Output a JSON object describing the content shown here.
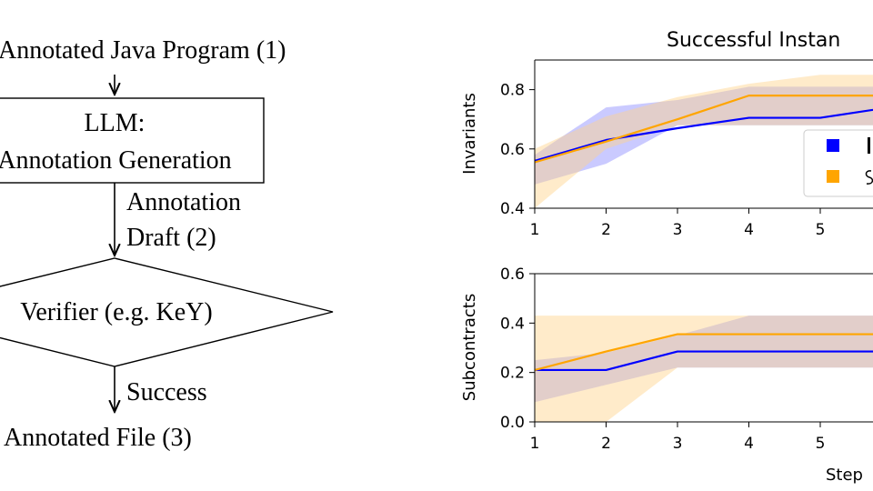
{
  "flowchart": {
    "input_label": "Annotated Java Program (1)",
    "llm_box": {
      "line1": "LLM:",
      "line2": "Annotation Generation"
    },
    "draft_edge": {
      "line1": "Annotation",
      "line2": "Draft (2)"
    },
    "verifier_label": "Verifier (e.g. KeY)",
    "success_edge": "Success",
    "output_label": "Annotated File (3)"
  },
  "colors": {
    "series_blue": "#0000ff",
    "series_orange": "#ffa500",
    "band_blue": "#8a8aff",
    "band_orange": "#ffd38a"
  },
  "chart_data": [
    {
      "type": "line",
      "title": "Successful Instan",
      "xlabel": "",
      "ylabel": "Invariants",
      "categories": [
        "1",
        "2",
        "3",
        "4",
        "5"
      ],
      "x": [
        1,
        2,
        3,
        4,
        5,
        6.1
      ],
      "xlim": [
        1,
        6.1
      ],
      "ylim": [
        0.4,
        0.9
      ],
      "yticks": [
        0.4,
        0.6,
        0.8
      ],
      "ytick_labels": [
        "0.4",
        "0.6",
        "0.8"
      ],
      "legend": "right",
      "series": [
        {
          "name": "blue",
          "color": "#0000ff",
          "values": [
            0.56,
            0.63,
            0.67,
            0.705,
            0.705,
            0.745
          ],
          "lower": [
            0.48,
            0.55,
            0.68,
            0.68,
            0.68,
            0.68
          ],
          "upper": [
            0.58,
            0.74,
            0.765,
            0.81,
            0.81,
            0.81
          ]
        },
        {
          "name": "orange",
          "color": "#ffa500",
          "values": [
            0.555,
            0.625,
            0.7,
            0.78,
            0.78,
            0.78
          ],
          "lower": [
            0.4,
            0.6,
            0.68,
            0.68,
            0.68,
            0.68
          ],
          "upper": [
            0.6,
            0.71,
            0.775,
            0.82,
            0.85,
            0.85
          ]
        }
      ]
    },
    {
      "type": "line",
      "title": "",
      "xlabel": "Step",
      "ylabel": "Subcontracts",
      "categories": [
        "1",
        "2",
        "3",
        "4",
        "5"
      ],
      "x": [
        1,
        2,
        3,
        4,
        5,
        6.1
      ],
      "xlim": [
        1,
        6.1
      ],
      "ylim": [
        0.0,
        0.6
      ],
      "yticks": [
        0.0,
        0.2,
        0.4,
        0.6
      ],
      "ytick_labels": [
        "0.0",
        "0.2",
        "0.4",
        "0.6"
      ],
      "series": [
        {
          "name": "blue",
          "color": "#0000ff",
          "values": [
            0.21,
            0.21,
            0.285,
            0.285,
            0.285,
            0.285
          ],
          "lower": [
            0.08,
            0.15,
            0.22,
            0.22,
            0.22,
            0.22
          ],
          "upper": [
            0.25,
            0.28,
            0.35,
            0.43,
            0.43,
            0.43
          ]
        },
        {
          "name": "orange",
          "color": "#ffa500",
          "values": [
            0.21,
            0.285,
            0.355,
            0.355,
            0.355,
            0.355
          ],
          "lower": [
            0.0,
            0.0,
            0.22,
            0.22,
            0.22,
            0.22
          ],
          "upper": [
            0.43,
            0.43,
            0.43,
            0.43,
            0.43,
            0.43
          ]
        }
      ]
    }
  ]
}
